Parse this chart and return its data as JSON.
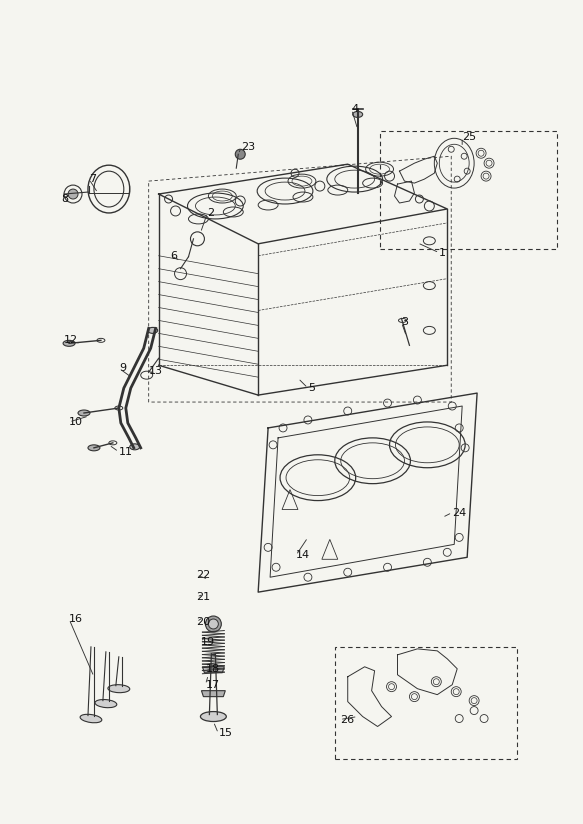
{
  "bg_color": "#f5f5f0",
  "line_color": "#333333",
  "label_color": "#111111",
  "label_data": [
    [
      "1",
      440,
      252,
      418,
      242,
      "left"
    ],
    [
      "2",
      207,
      212,
      200,
      232,
      "left"
    ],
    [
      "3",
      402,
      322,
      407,
      336,
      "left"
    ],
    [
      "4",
      352,
      108,
      358,
      128,
      "left"
    ],
    [
      "5",
      308,
      388,
      298,
      378,
      "left"
    ],
    [
      "6",
      170,
      255,
      180,
      260,
      "left"
    ],
    [
      "7",
      88,
      178,
      97,
      192,
      "left"
    ],
    [
      "8",
      60,
      198,
      70,
      193,
      "left"
    ],
    [
      "9",
      118,
      368,
      132,
      378,
      "left"
    ],
    [
      "10",
      68,
      422,
      88,
      416,
      "left"
    ],
    [
      "11",
      118,
      452,
      108,
      445,
      "left"
    ],
    [
      "12",
      63,
      340,
      80,
      343,
      "left"
    ],
    [
      "13",
      148,
      371,
      155,
      373,
      "left"
    ],
    [
      "14",
      296,
      556,
      308,
      538,
      "left"
    ],
    [
      "15",
      218,
      735,
      213,
      723,
      "left"
    ],
    [
      "16",
      68,
      620,
      93,
      678,
      "left"
    ],
    [
      "17",
      205,
      686,
      208,
      676,
      "left"
    ],
    [
      "18",
      205,
      670,
      208,
      671,
      "left"
    ],
    [
      "19",
      200,
      643,
      205,
      638,
      "left"
    ],
    [
      "20",
      196,
      623,
      203,
      618,
      "left"
    ],
    [
      "21",
      196,
      598,
      203,
      595,
      "left"
    ],
    [
      "22",
      196,
      576,
      208,
      580,
      "left"
    ],
    [
      "23",
      241,
      146,
      238,
      153,
      "left"
    ],
    [
      "24",
      453,
      513,
      443,
      518,
      "left"
    ],
    [
      "25",
      463,
      136,
      463,
      146,
      "left"
    ],
    [
      "26",
      340,
      721,
      358,
      718,
      "left"
    ]
  ]
}
